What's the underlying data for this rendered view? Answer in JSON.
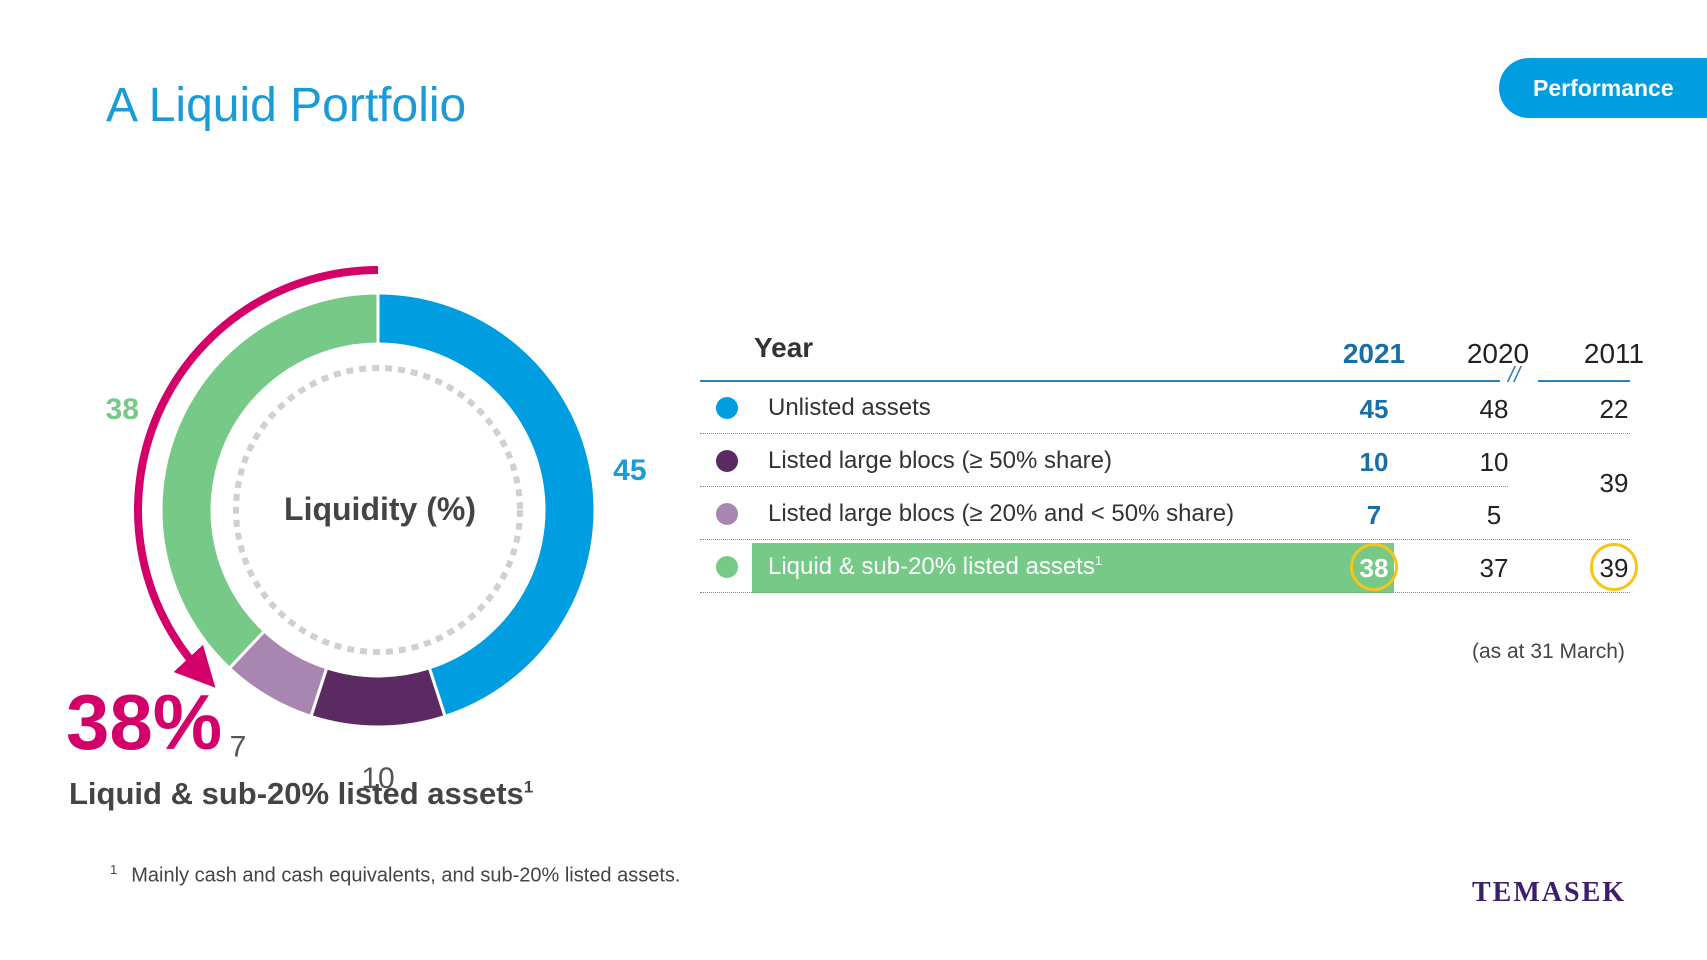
{
  "header": {
    "title": "A Liquid Portfolio",
    "section_tag": "Performance"
  },
  "chart_data": {
    "type": "pie",
    "title": "Liquidity (%)",
    "slices": [
      {
        "label": "Unlisted assets",
        "value": 45,
        "color": "#009de0"
      },
      {
        "label": "Listed large blocs (≥ 50% share)",
        "value": 10,
        "color": "#5b2a63"
      },
      {
        "label": "Listed large blocs (≥ 20% and < 50% share)",
        "value": 7,
        "color": "#a985b2"
      },
      {
        "label": "Liquid & sub-20% listed assets",
        "value": 38,
        "color": "#76c987"
      }
    ]
  },
  "highlight": {
    "value": "38%",
    "label": "Liquid & sub-20% listed assets",
    "footnote_mark": "1"
  },
  "table": {
    "year_label": "Year",
    "years": [
      "2021",
      "2020",
      "2011"
    ],
    "break_mark": "//",
    "rows": [
      {
        "label": "Unlisted assets",
        "color": "#009de0",
        "v2021": "45",
        "v2020": "48",
        "v2011": "22"
      },
      {
        "label": "Listed large blocs (≥ 50% share)",
        "color": "#5b2a63",
        "v2021": "10",
        "v2020": "10"
      },
      {
        "label": "Listed large blocs (≥ 20% and < 50% share)",
        "color": "#a985b2",
        "v2021": "7",
        "v2020": "5"
      },
      {
        "label": "Liquid & sub-20% listed assets",
        "footnote_mark": "1",
        "color": "#76c987",
        "v2021": "38",
        "v2020": "37",
        "v2011": "39"
      }
    ],
    "merged_2011_value": "39",
    "note": "(as at 31 March)"
  },
  "footnote": {
    "mark": "1",
    "text": "Mainly cash and cash equivalents, and sub-20% listed assets."
  },
  "brand": {
    "logo_text": "TEMASEK",
    "accent_color": "#d4006a"
  }
}
